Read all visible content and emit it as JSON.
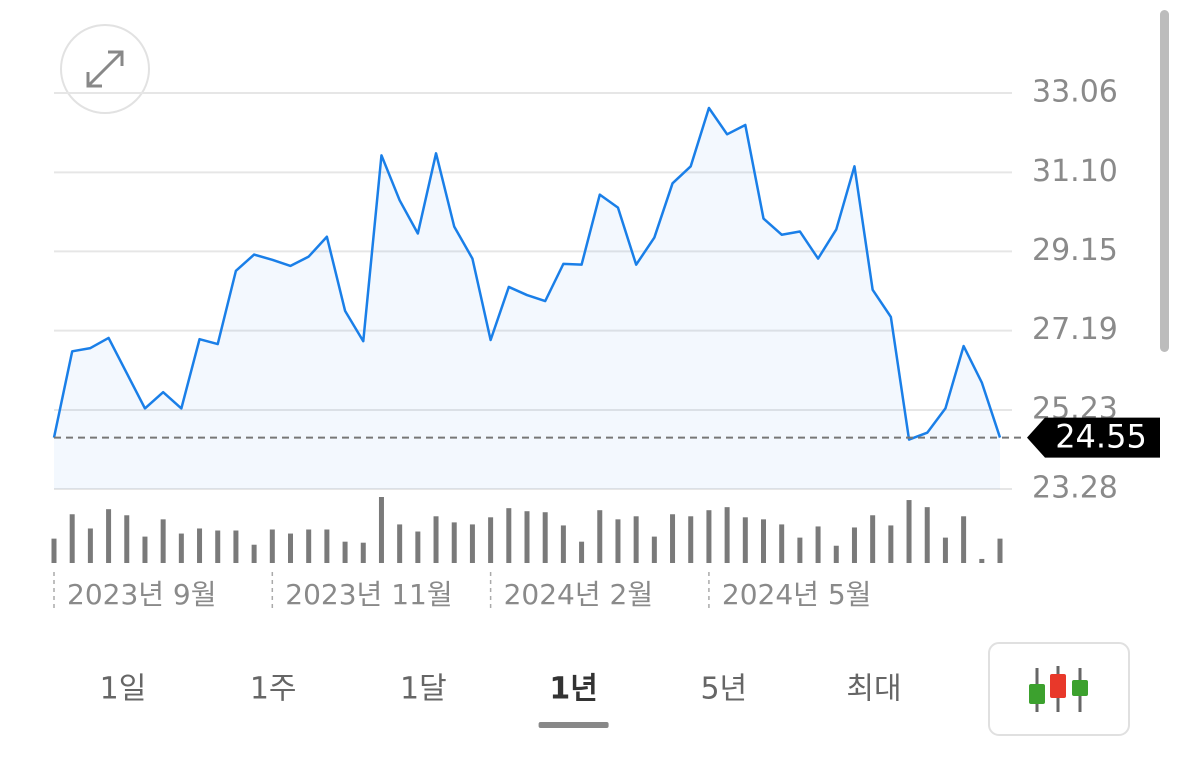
{
  "chart_data": {
    "type": "line",
    "categories": [
      "2023년 9월",
      null,
      null,
      null,
      null,
      null,
      null,
      null,
      null,
      null,
      null,
      null,
      "2023년 11월",
      null,
      null,
      null,
      null,
      null,
      null,
      null,
      null,
      null,
      null,
      null,
      "2024년 2월",
      null,
      null,
      null,
      null,
      null,
      null,
      null,
      null,
      null,
      null,
      null,
      "2024년 5월",
      null,
      null,
      null,
      null,
      null,
      null,
      null,
      null,
      null,
      null,
      null,
      null,
      null,
      null,
      null,
      null
    ],
    "series": [
      {
        "color": "#1a7fe8",
        "values": [
          24.55,
          26.68,
          26.76,
          27.01,
          26.14,
          25.27,
          25.67,
          25.27,
          26.98,
          26.86,
          28.67,
          29.07,
          28.94,
          28.79,
          29.02,
          29.51,
          27.68,
          26.93,
          31.52,
          30.41,
          29.59,
          31.57,
          29.76,
          28.97,
          26.96,
          28.27,
          28.07,
          27.92,
          28.84,
          28.82,
          30.55,
          30.23,
          28.82,
          29.49,
          30.83,
          31.25,
          32.69,
          32.04,
          32.27,
          29.96,
          29.56,
          29.64,
          28.97,
          29.69,
          31.25,
          28.2,
          27.53,
          24.5,
          24.67,
          25.27,
          26.81,
          25.91,
          24.55
        ]
      }
    ],
    "volume": {
      "color": "#7a7a7a",
      "values": [
        24,
        48,
        34,
        53,
        47,
        26,
        43,
        29,
        34,
        32,
        32,
        18,
        33,
        29,
        33,
        33,
        21,
        20,
        65,
        38,
        31,
        46,
        40,
        38,
        45,
        54,
        51,
        50,
        37,
        21,
        52,
        43,
        46,
        26,
        48,
        46,
        52,
        55,
        45,
        43,
        38,
        25,
        36,
        17,
        35,
        47,
        37,
        62,
        55,
        25,
        46,
        4,
        24
      ]
    },
    "last_value": 24.55,
    "ylim": [
      23.28,
      33.06
    ],
    "yticks": [
      23.28,
      25.23,
      27.19,
      29.15,
      {
        "value": 31.1,
        "label": "31.10"
      },
      33.06
    ],
    "grid": true
  },
  "tabs": [
    "1일",
    "1주",
    "1달",
    "1년",
    "5년",
    "최대"
  ],
  "selected_tab": 3
}
